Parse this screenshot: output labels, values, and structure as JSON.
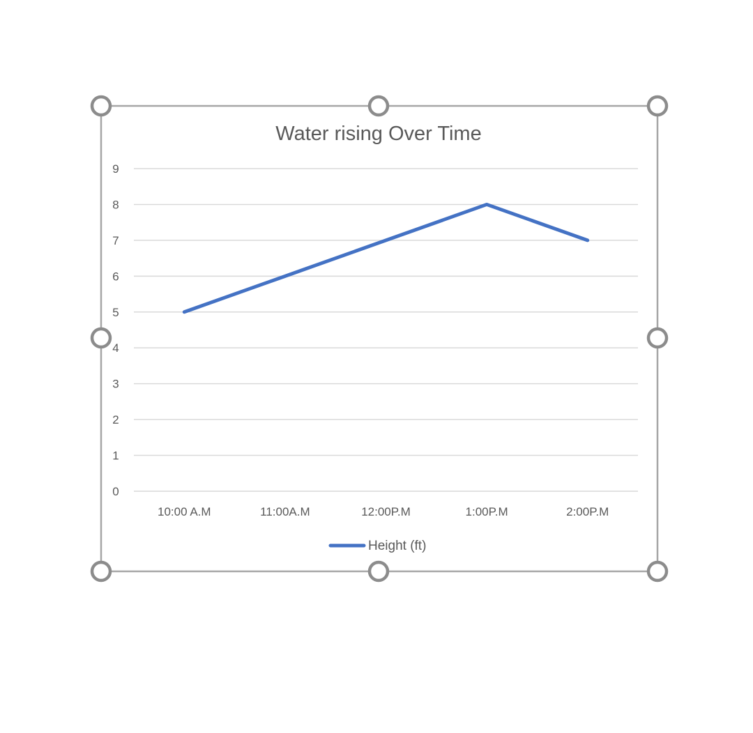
{
  "chart_data": {
    "type": "line",
    "title": "Water rising Over Time",
    "categories": [
      "10:00 A.M",
      "11:00A.M",
      "12:00P.M",
      "1:00P.M",
      "2:00P.M"
    ],
    "series": [
      {
        "name": "Height (ft)",
        "values": [
          5,
          6,
          7,
          8,
          7
        ],
        "color": "#4472c4"
      }
    ],
    "ylim": [
      0,
      9
    ],
    "yticks": [
      0,
      1,
      2,
      3,
      4,
      5,
      6,
      7,
      8,
      9
    ],
    "grid": true,
    "legend": "bottom",
    "xlabel": "",
    "ylabel": ""
  },
  "selection": {
    "frame_color": "#a6a6a6",
    "handle_color": "#8c8c8c"
  }
}
